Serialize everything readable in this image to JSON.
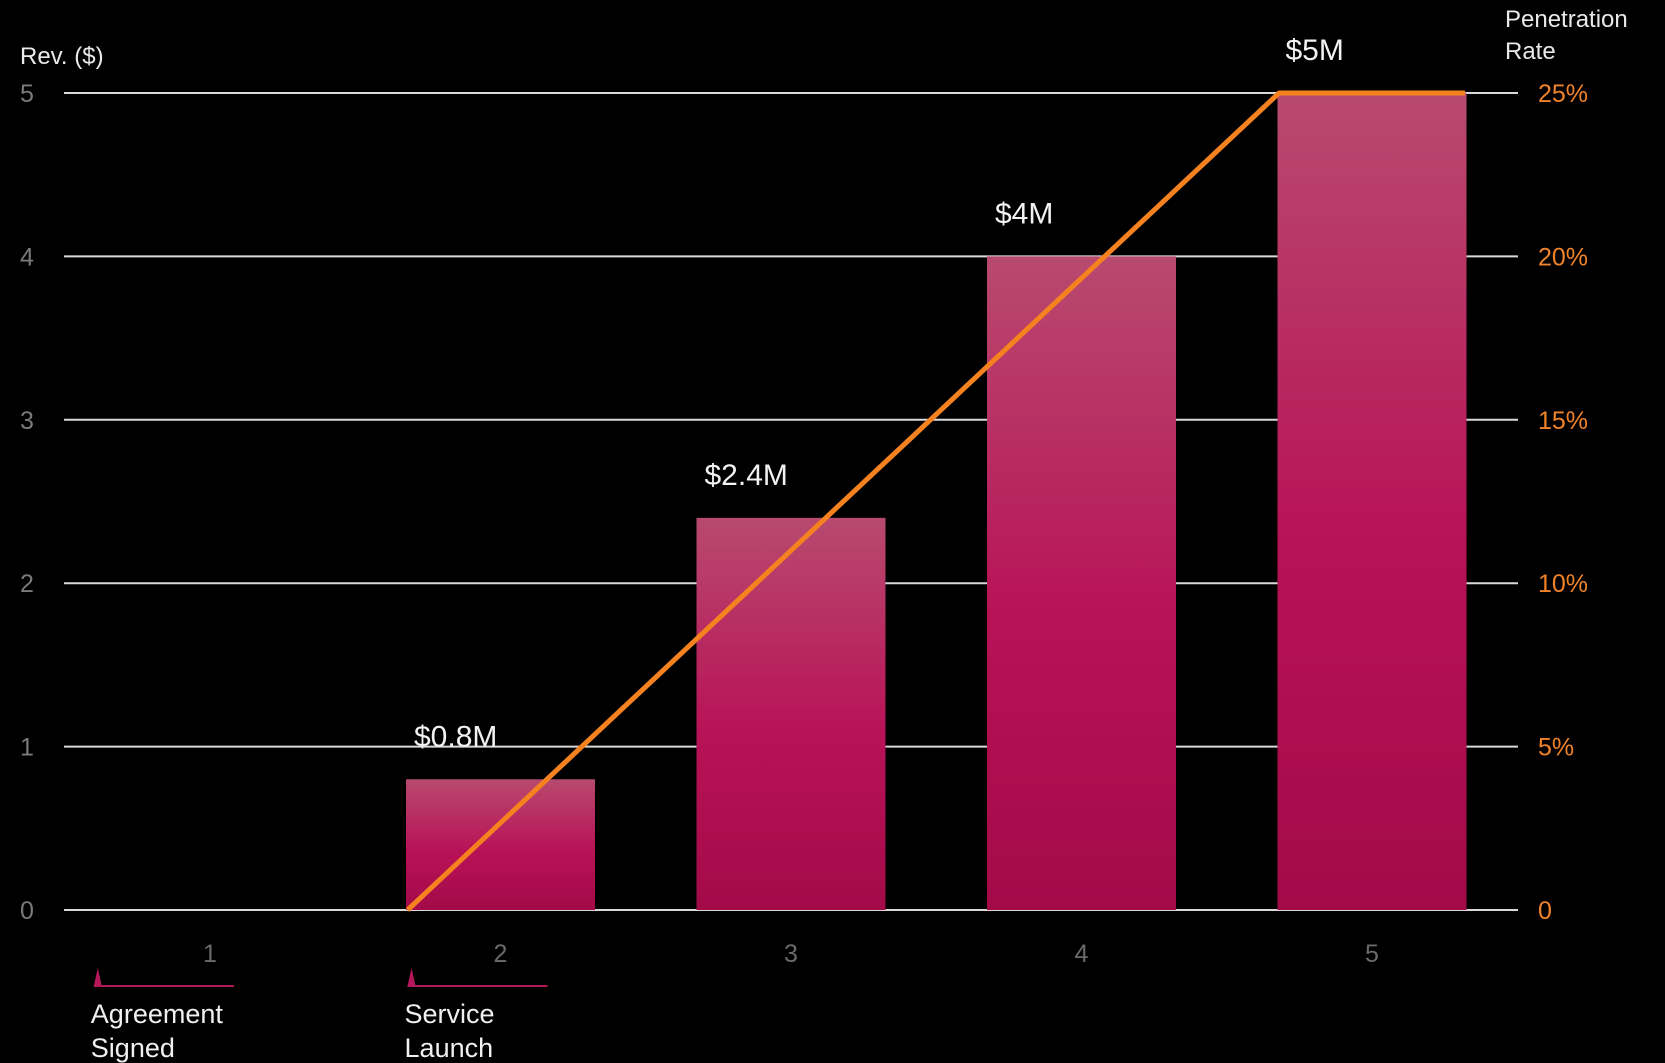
{
  "chart_data": {
    "type": "bar",
    "categories": [
      "1",
      "2",
      "3",
      "4",
      "5"
    ],
    "series": [
      {
        "axis": "left",
        "values": [
          0,
          0.8,
          2.4,
          4,
          5
        ],
        "data_labels": [
          "",
          "$0.8M",
          "$2.4M",
          "$4M",
          "$5M"
        ],
        "color": "#c0135e"
      },
      {
        "type": "line",
        "axis": "right",
        "points": [
          {
            "x": 1.68,
            "y": 0
          },
          {
            "x": 4.68,
            "y": 25
          },
          {
            "x": 5.32,
            "y": 25
          }
        ],
        "color": "#f5821f"
      }
    ],
    "ylabel_left": "Rev. ($)",
    "ylabel_right": [
      "Penetration",
      "Rate"
    ],
    "ylim_left": [
      0,
      5
    ],
    "yticks_left": [
      "0",
      "1",
      "2",
      "3",
      "4",
      "5"
    ],
    "ylim_right": [
      0,
      25
    ],
    "yticks_right": [
      "0",
      "5%",
      "10%",
      "15%",
      "20%",
      "25%"
    ],
    "grid": true,
    "milestones": [
      {
        "lines": [
          "Agreement",
          "Signed"
        ],
        "x": 0.6,
        "color": "#b5175b"
      },
      {
        "lines": [
          "Service",
          "Launch"
        ],
        "x": 1.68,
        "color": "#b5175b"
      }
    ]
  },
  "colors": {
    "background": "#000000",
    "grid": "#d9d9d9",
    "bar_top": "#b84a6e",
    "bar_bottom": "#a30a48",
    "line": "#f5821f",
    "right_axis": "#f0832a"
  }
}
